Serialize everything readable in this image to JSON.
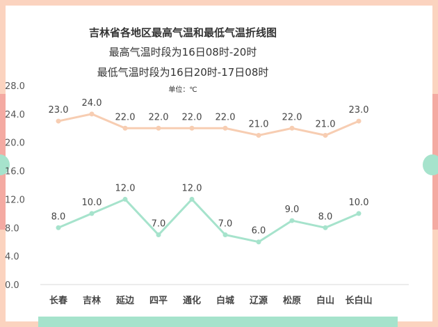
{
  "chart_data": {
    "type": "line",
    "title": "吉林省各地区最高气温和最低气温折线图",
    "subtitle_lines": [
      "最高气温时段为16日08时-20时",
      "最低气温时段为16日20时-17日08时"
    ],
    "unit_label": "单位：℃",
    "categories": [
      "长春",
      "吉林",
      "延边",
      "四平",
      "通化",
      "白城",
      "辽源",
      "松原",
      "白山",
      "长白山"
    ],
    "series": [
      {
        "key": "max",
        "values": [
          23,
          24,
          22,
          22,
          22,
          22,
          21,
          22,
          21,
          23
        ],
        "color": "#f7cdb2"
      },
      {
        "key": "min",
        "values": [
          8,
          10,
          12,
          7,
          12,
          7,
          6,
          9,
          8,
          10
        ],
        "color": "#a6e3cc"
      }
    ],
    "yticks": [
      "0.0",
      "4.0",
      "8.0",
      "12.0",
      "16.0",
      "20.0",
      "24.0",
      "28.0"
    ],
    "ylim": [
      0,
      28
    ],
    "grid": false,
    "data_labels": true
  }
}
